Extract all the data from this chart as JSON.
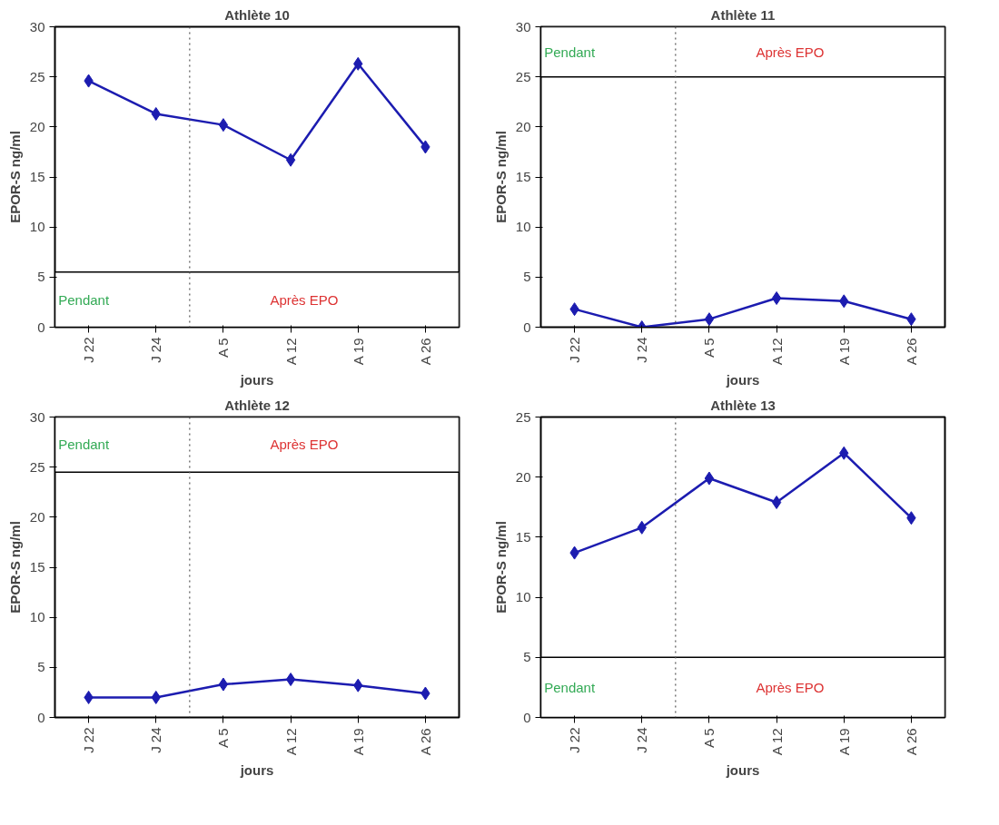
{
  "chart_data": [
    {
      "type": "line",
      "title": "Athlète 10",
      "xlabel": "jours",
      "ylabel": "EPOR-S ng/ml",
      "categories": [
        "J 22",
        "J 24",
        "A 5",
        "A 12",
        "A 19",
        "A 26"
      ],
      "ylim": [
        0,
        30
      ],
      "yticks": [
        0,
        5,
        10,
        15,
        20,
        25,
        30
      ],
      "series": [
        {
          "color": "#1c1cb0",
          "values": [
            24.6,
            21.3,
            20.2,
            16.7,
            26.3,
            18.0
          ]
        }
      ],
      "bands": [
        {
          "axis": "y",
          "from": 0,
          "to": 5.5,
          "color": "#ffffff"
        }
      ],
      "annotations": [
        "Pendant",
        "Après EPO"
      ],
      "marker": "diamond",
      "line_style": "solid"
    },
    {
      "type": "line",
      "title": "Athlète 11",
      "xlabel": "jours",
      "ylabel": "EPOR-S ng/ml",
      "categories": [
        "J 22",
        "J 24",
        "A 5",
        "A 12",
        "A 19",
        "A 26"
      ],
      "ylim": [
        0,
        30
      ],
      "yticks": [
        0,
        5,
        10,
        15,
        20,
        25,
        30
      ],
      "series": [
        {
          "color": "#1c1cb0",
          "values": [
            1.8,
            0,
            0.8,
            2.9,
            2.6,
            0.8
          ]
        }
      ],
      "bands": [
        {
          "axis": "y",
          "from": 25,
          "to": 30,
          "color": "#ffffff"
        }
      ],
      "annotations": [
        "Pendant",
        "Après EPO"
      ],
      "marker": "diamond",
      "line_style": "solid"
    },
    {
      "type": "line",
      "title": "Athlète 12",
      "xlabel": "jours",
      "ylabel": "EPOR-S ng/ml",
      "categories": [
        "J 22",
        "J 24",
        "A 5",
        "A 12",
        "A 19",
        "A 26"
      ],
      "ylim": [
        0,
        30
      ],
      "yticks": [
        0,
        5,
        10,
        15,
        20,
        25,
        30
      ],
      "series": [
        {
          "color": "#1c1cb0",
          "values": [
            2.0,
            2.0,
            3.3,
            3.8,
            3.2,
            2.4
          ]
        }
      ],
      "bands": [
        {
          "axis": "y",
          "from": 24.5,
          "to": 30,
          "color": "#ffffff"
        }
      ],
      "annotations": [
        "Pendant",
        "Après EPO"
      ],
      "marker": "diamond",
      "line_style": "solid"
    },
    {
      "type": "line",
      "title": "Athlète 13",
      "xlabel": "jours",
      "ylabel": "EPOR-S ng/ml",
      "categories": [
        "J 22",
        "J 24",
        "A 5",
        "A 12",
        "A 19",
        "A 26"
      ],
      "ylim": [
        0,
        25
      ],
      "yticks": [
        0,
        5,
        10,
        15,
        20,
        25
      ],
      "series": [
        {
          "color": "#1c1cb0",
          "values": [
            13.7,
            15.8,
            19.9,
            17.9,
            22.0,
            16.6
          ]
        }
      ],
      "bands": [
        {
          "axis": "y",
          "from": 0,
          "to": 5,
          "color": "#ffffff"
        }
      ],
      "annotations": [
        "Pendant",
        "Après EPO"
      ],
      "marker": "diamond",
      "line_style": "solid"
    }
  ]
}
